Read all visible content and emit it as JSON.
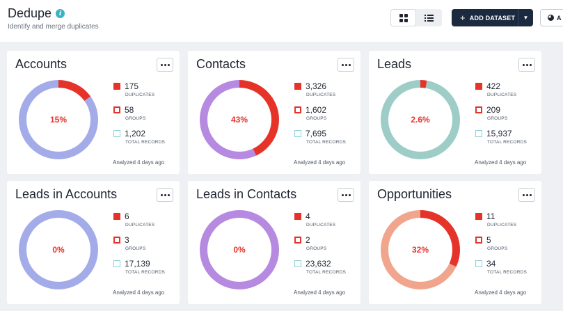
{
  "header": {
    "title": "Dedupe",
    "subtitle": "Identify and merge duplicates",
    "add_dataset_label": "ADD DATASET",
    "partial_button_label": "A"
  },
  "colors": {
    "accent_red": "#e5332a",
    "navy": "#1b2a3f",
    "info_teal": "#3bb3c3"
  },
  "cards": [
    {
      "title": "Accounts",
      "percent": "15%",
      "percent_value": 15,
      "ring_color": "#a3ace8",
      "duplicates": "175",
      "groups": "58",
      "total": "1,202",
      "analyzed": "Analyzed 4 days ago"
    },
    {
      "title": "Contacts",
      "percent": "43%",
      "percent_value": 43,
      "ring_color": "#b68ae0",
      "duplicates": "3,326",
      "groups": "1,602",
      "total": "7,695",
      "analyzed": "Analyzed 4 days ago"
    },
    {
      "title": "Leads",
      "percent": "2.6%",
      "percent_value": 2.6,
      "ring_color": "#9ecdc8",
      "duplicates": "422",
      "groups": "209",
      "total": "15,937",
      "analyzed": "Analyzed 4 days ago"
    },
    {
      "title": "Leads in Accounts",
      "percent": "0%",
      "percent_value": 0,
      "ring_color": "#a3ace8",
      "duplicates": "6",
      "groups": "3",
      "total": "17,139",
      "analyzed": "Analyzed 4 days ago"
    },
    {
      "title": "Leads in Contacts",
      "percent": "0%",
      "percent_value": 0,
      "ring_color": "#b68ae0",
      "duplicates": "4",
      "groups": "2",
      "total": "23,632",
      "analyzed": "Analyzed 4 days ago"
    },
    {
      "title": "Opportunities",
      "percent": "32%",
      "percent_value": 32,
      "ring_color": "#f0a58c",
      "duplicates": "11",
      "groups": "5",
      "total": "34",
      "analyzed": "Analyzed 4 days ago"
    }
  ],
  "labels": {
    "duplicates": "DUPLICATES",
    "groups": "GROUPS",
    "total": "TOTAL RECORDS"
  }
}
